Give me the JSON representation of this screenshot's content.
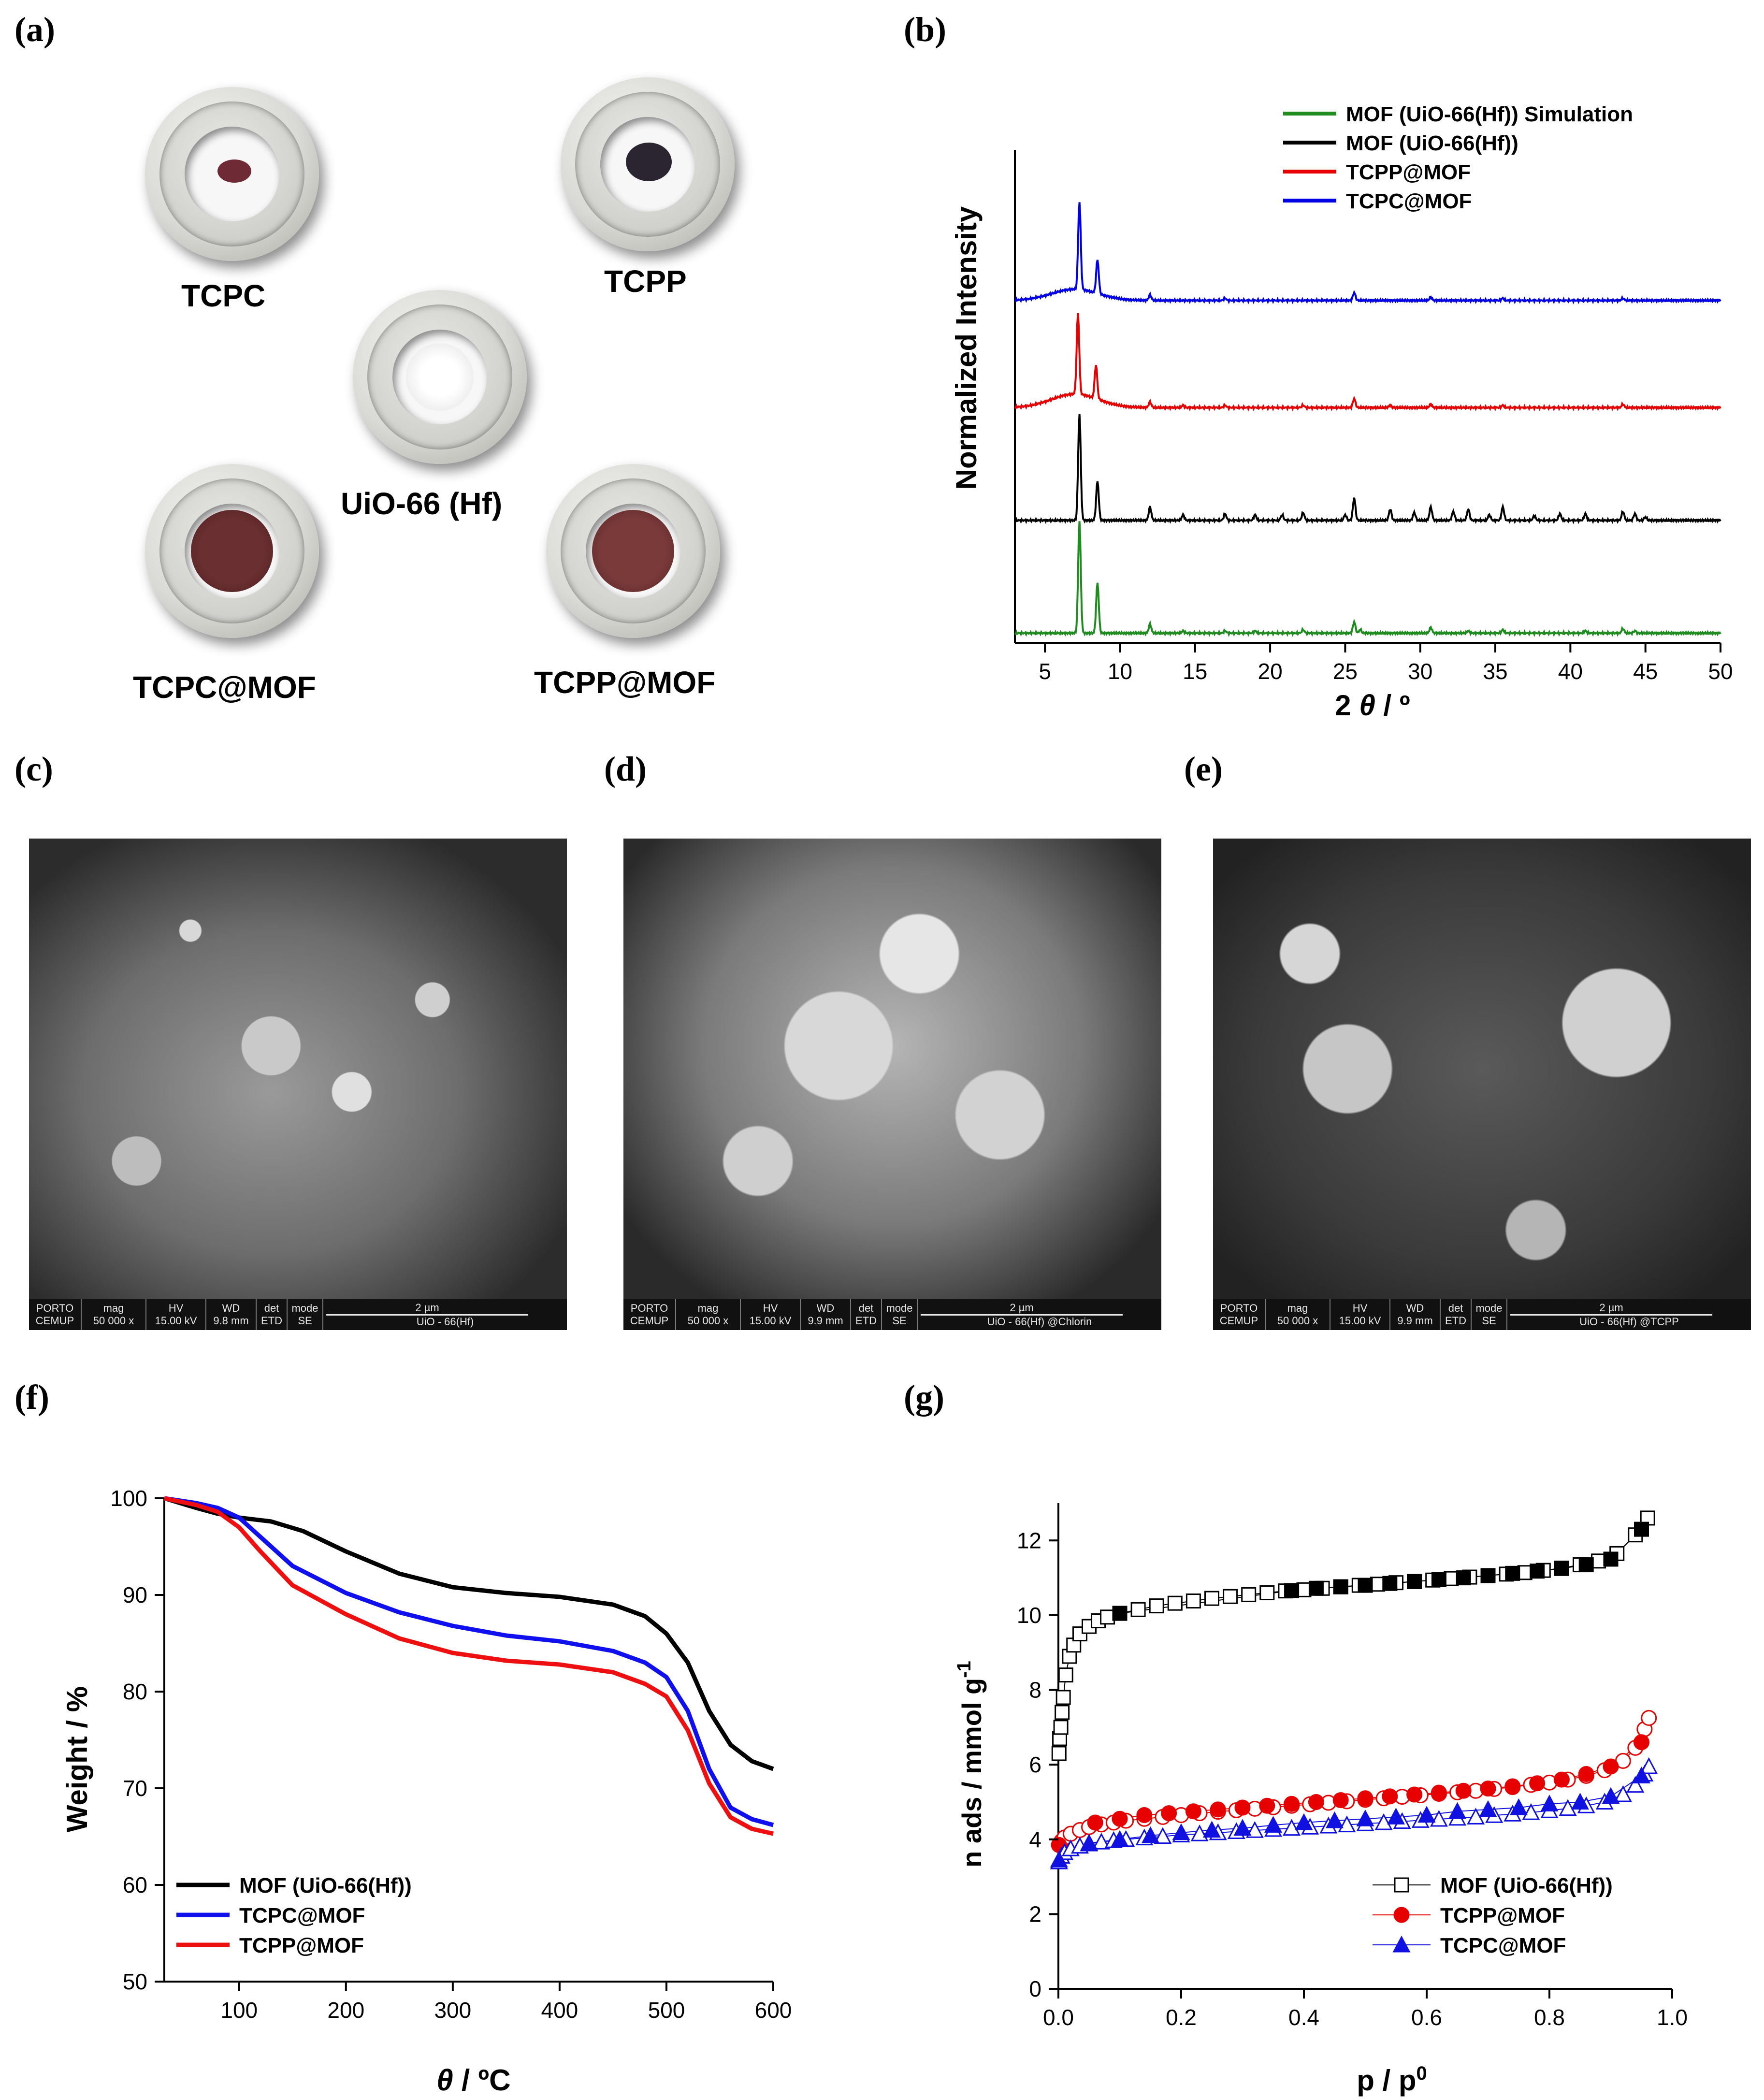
{
  "panels": {
    "a": {
      "label": "(a)",
      "samples": [
        {
          "name": "TCPC",
          "powder_color": "#6e2a35"
        },
        {
          "name": "TCPP",
          "powder_color": "#2a2530"
        },
        {
          "name": "UiO-66 (Hf)",
          "powder_color": "#ffffff"
        },
        {
          "name": "TCPC@MOF",
          "powder_color": "#6a2f30"
        },
        {
          "name": "TCPP@MOF",
          "powder_color": "#7a3a3a"
        }
      ]
    },
    "c": {
      "label": "(c)",
      "scalebar": "2 µm",
      "info": [
        "mag",
        "50 000 x",
        "HV",
        "15.00 kV",
        "WD",
        "9.8 mm",
        "det",
        "ETD",
        "mode",
        "SE"
      ],
      "sample": "UiO - 66(Hf)",
      "logo_top": "PORTO",
      "logo_bottom": "CEMUP"
    },
    "d": {
      "label": "(d)",
      "scalebar": "2 µm",
      "info": [
        "mag",
        "50 000 x",
        "HV",
        "15.00 kV",
        "WD",
        "9.9 mm",
        "det",
        "ETD",
        "mode",
        "SE"
      ],
      "sample": "UiO - 66(Hf) @Chlorin",
      "logo_top": "PORTO",
      "logo_bottom": "CEMUP"
    },
    "e": {
      "label": "(e)",
      "scalebar": "2 µm",
      "info": [
        "mag",
        "50 000 x",
        "HV",
        "15.00 kV",
        "WD",
        "9.9 mm",
        "det",
        "ETD",
        "mode",
        "SE"
      ],
      "sample": "UiO - 66(Hf) @TCPP",
      "logo_top": "PORTO",
      "logo_bottom": "CEMUP"
    }
  },
  "chart_data": [
    {
      "id": "b",
      "label": "(b)",
      "type": "line",
      "title": "",
      "xlabel_prefix": "2 ",
      "xlabel_symbol": "θ",
      "xlabel_suffix": " / º",
      "ylabel": "Normalized Intensity",
      "xlim": [
        3,
        50
      ],
      "xticks": [
        5,
        10,
        15,
        20,
        25,
        30,
        35,
        40,
        45,
        50
      ],
      "legend": "top-right",
      "series": [
        {
          "name": "MOF (UiO-66(Hf)) Simulation",
          "color": "#1e8c1e",
          "offset": 0,
          "baseline": 0,
          "peaks": [
            [
              7.3,
              100
            ],
            [
              8.5,
              45
            ],
            [
              12.0,
              8
            ],
            [
              14.2,
              2
            ],
            [
              17.0,
              2
            ],
            [
              19.0,
              2
            ],
            [
              22.2,
              3
            ],
            [
              25.6,
              10
            ],
            [
              26.0,
              3
            ],
            [
              30.7,
              5
            ],
            [
              33.2,
              2
            ],
            [
              35.5,
              3
            ],
            [
              41.0,
              2
            ],
            [
              43.5,
              4
            ],
            [
              44.3,
              2
            ]
          ]
        },
        {
          "name": "MOF (UiO-66(Hf))",
          "color": "#000000",
          "offset": 100,
          "baseline": 0,
          "peaks": [
            [
              7.3,
              95
            ],
            [
              8.5,
              35
            ],
            [
              12.0,
              12
            ],
            [
              14.2,
              5
            ],
            [
              17.0,
              6
            ],
            [
              19.0,
              5
            ],
            [
              20.8,
              5
            ],
            [
              22.2,
              7
            ],
            [
              25.0,
              5
            ],
            [
              25.6,
              20
            ],
            [
              28.0,
              10
            ],
            [
              29.6,
              7
            ],
            [
              30.7,
              12
            ],
            [
              32.2,
              8
            ],
            [
              33.2,
              10
            ],
            [
              34.6,
              5
            ],
            [
              35.5,
              12
            ],
            [
              37.6,
              4
            ],
            [
              39.3,
              6
            ],
            [
              41.0,
              6
            ],
            [
              43.5,
              8
            ],
            [
              44.3,
              6
            ],
            [
              45.0,
              3
            ]
          ]
        },
        {
          "name": "TCPP@MOF",
          "color": "#e60000",
          "offset": 200,
          "baseline": 12,
          "peaks": [
            [
              7.2,
              72
            ],
            [
              8.4,
              30
            ],
            [
              12.0,
              5
            ],
            [
              14.2,
              2
            ],
            [
              17.0,
              2
            ],
            [
              22.2,
              2
            ],
            [
              25.6,
              8
            ],
            [
              28.0,
              2
            ],
            [
              30.7,
              3
            ],
            [
              35.5,
              2
            ],
            [
              43.5,
              3
            ]
          ]
        },
        {
          "name": "TCPC@MOF",
          "color": "#0000e6",
          "offset": 295,
          "baseline": 10,
          "peaks": [
            [
              7.3,
              78
            ],
            [
              8.5,
              30
            ],
            [
              12.0,
              5
            ],
            [
              17.0,
              2
            ],
            [
              25.6,
              7
            ],
            [
              30.7,
              3
            ],
            [
              35.5,
              2
            ],
            [
              43.5,
              2
            ]
          ]
        }
      ]
    },
    {
      "id": "f",
      "label": "(f)",
      "type": "line",
      "title": "",
      "xlabel_symbol": "θ",
      "xlabel_suffix": " / ºC",
      "ylabel": "Weight / %",
      "xlim": [
        30,
        600
      ],
      "ylim": [
        50,
        100
      ],
      "xticks": [
        100,
        200,
        300,
        400,
        500,
        600
      ],
      "yticks": [
        50,
        60,
        70,
        80,
        90,
        100
      ],
      "legend": "bottom-left",
      "series": [
        {
          "name": "MOF (UiO-66(Hf))",
          "color": "#000000",
          "x": [
            30,
            60,
            80,
            100,
            130,
            160,
            200,
            250,
            300,
            350,
            400,
            450,
            480,
            500,
            520,
            540,
            560,
            580,
            600
          ],
          "y": [
            100,
            99.0,
            98.4,
            98.0,
            97.6,
            96.6,
            94.5,
            92.2,
            90.8,
            90.2,
            89.8,
            89.0,
            87.8,
            86.0,
            83.0,
            78.0,
            74.5,
            72.8,
            72.0
          ]
        },
        {
          "name": "TCPC@MOF",
          "color": "#1010ee",
          "x": [
            30,
            60,
            80,
            100,
            120,
            150,
            200,
            250,
            300,
            350,
            400,
            450,
            480,
            500,
            520,
            540,
            560,
            580,
            600
          ],
          "y": [
            100,
            99.5,
            99.0,
            98.0,
            96.0,
            93.0,
            90.2,
            88.2,
            86.8,
            85.8,
            85.2,
            84.2,
            83.0,
            81.5,
            78.0,
            72.0,
            68.0,
            66.8,
            66.2
          ]
        },
        {
          "name": "TCPP@MOF",
          "color": "#ee1010",
          "x": [
            30,
            60,
            80,
            100,
            120,
            150,
            200,
            250,
            300,
            350,
            400,
            450,
            480,
            500,
            520,
            540,
            560,
            580,
            600
          ],
          "y": [
            100,
            99.3,
            98.6,
            97.0,
            94.5,
            91.0,
            88.0,
            85.5,
            84.0,
            83.2,
            82.8,
            82.0,
            80.8,
            79.5,
            76.0,
            70.5,
            67.0,
            65.8,
            65.3
          ]
        }
      ]
    },
    {
      "id": "g",
      "label": "(g)",
      "type": "scatter",
      "title": "",
      "xlabel_main": "p / p",
      "xlabel_sup": "0",
      "ylabel_main": "n ads / mmol g",
      "ylabel_sup": "-1",
      "xlim": [
        0,
        1.0
      ],
      "ylim": [
        0,
        13
      ],
      "xticks": [
        0.0,
        0.2,
        0.4,
        0.6,
        0.8,
        1.0
      ],
      "yticks": [
        0,
        2,
        4,
        6,
        8,
        10,
        12
      ],
      "legend": "bottom-right",
      "series": [
        {
          "name": "MOF (UiO-66(Hf))",
          "color": "#000000",
          "marker": "square",
          "adsorption": {
            "x": [
              0.001,
              0.002,
              0.004,
              0.006,
              0.008,
              0.012,
              0.018,
              0.025,
              0.035,
              0.05,
              0.065,
              0.08,
              0.1,
              0.13,
              0.16,
              0.19,
              0.22,
              0.25,
              0.28,
              0.31,
              0.34,
              0.37,
              0.4,
              0.43,
              0.46,
              0.49,
              0.52,
              0.55,
              0.58,
              0.61,
              0.64,
              0.67,
              0.7,
              0.73,
              0.76,
              0.79,
              0.82,
              0.85,
              0.88,
              0.91,
              0.94,
              0.96
            ],
            "y": [
              6.3,
              6.7,
              7.0,
              7.4,
              7.8,
              8.4,
              8.9,
              9.2,
              9.5,
              9.7,
              9.85,
              9.95,
              10.05,
              10.15,
              10.25,
              10.32,
              10.38,
              10.45,
              10.5,
              10.55,
              10.6,
              10.65,
              10.68,
              10.72,
              10.76,
              10.8,
              10.83,
              10.87,
              10.9,
              10.94,
              10.98,
              11.02,
              11.06,
              11.1,
              11.14,
              11.2,
              11.26,
              11.35,
              11.45,
              11.65,
              12.15,
              12.6
            ]
          },
          "desorption": {
            "x": [
              0.95,
              0.9,
              0.86,
              0.82,
              0.78,
              0.74,
              0.7,
              0.66,
              0.62,
              0.58,
              0.54,
              0.5,
              0.46,
              0.42,
              0.38,
              0.1
            ],
            "y": [
              12.3,
              11.5,
              11.35,
              11.25,
              11.18,
              11.12,
              11.06,
              11.0,
              10.95,
              10.9,
              10.85,
              10.8,
              10.76,
              10.72,
              10.66,
              10.05
            ]
          }
        },
        {
          "name": "TCPP@MOF",
          "color": "#e60000",
          "marker": "circle",
          "adsorption": {
            "x": [
              0.001,
              0.005,
              0.01,
              0.02,
              0.035,
              0.05,
              0.07,
              0.09,
              0.11,
              0.14,
              0.17,
              0.2,
              0.23,
              0.26,
              0.29,
              0.32,
              0.35,
              0.38,
              0.41,
              0.44,
              0.47,
              0.5,
              0.53,
              0.56,
              0.59,
              0.62,
              0.65,
              0.68,
              0.71,
              0.74,
              0.77,
              0.8,
              0.83,
              0.86,
              0.89,
              0.92,
              0.94,
              0.955,
              0.962
            ],
            "y": [
              3.85,
              3.95,
              4.05,
              4.15,
              4.25,
              4.33,
              4.4,
              4.45,
              4.5,
              4.55,
              4.6,
              4.65,
              4.7,
              4.74,
              4.78,
              4.82,
              4.86,
              4.9,
              4.94,
              4.98,
              5.02,
              5.06,
              5.1,
              5.14,
              5.18,
              5.22,
              5.26,
              5.3,
              5.35,
              5.4,
              5.46,
              5.52,
              5.6,
              5.7,
              5.85,
              6.1,
              6.45,
              6.95,
              7.25
            ]
          },
          "desorption": {
            "x": [
              0.95,
              0.9,
              0.86,
              0.82,
              0.78,
              0.74,
              0.7,
              0.66,
              0.62,
              0.58,
              0.54,
              0.5,
              0.46,
              0.42,
              0.38,
              0.34,
              0.3,
              0.26,
              0.22,
              0.18,
              0.14,
              0.1,
              0.06,
              0.001
            ],
            "y": [
              6.6,
              5.95,
              5.75,
              5.6,
              5.5,
              5.42,
              5.36,
              5.3,
              5.25,
              5.2,
              5.15,
              5.1,
              5.05,
              5.0,
              4.95,
              4.9,
              4.85,
              4.8,
              4.75,
              4.7,
              4.65,
              4.55,
              4.45,
              3.85
            ]
          }
        },
        {
          "name": "TCPC@MOF",
          "color": "#1010e0",
          "marker": "triangle",
          "adsorption": {
            "x": [
              0.001,
              0.005,
              0.01,
              0.02,
              0.035,
              0.05,
              0.07,
              0.09,
              0.11,
              0.14,
              0.17,
              0.2,
              0.23,
              0.26,
              0.29,
              0.32,
              0.35,
              0.38,
              0.41,
              0.44,
              0.47,
              0.5,
              0.53,
              0.56,
              0.59,
              0.62,
              0.65,
              0.68,
              0.71,
              0.74,
              0.77,
              0.8,
              0.83,
              0.86,
              0.89,
              0.92,
              0.94,
              0.955,
              0.962
            ],
            "y": [
              3.4,
              3.55,
              3.65,
              3.75,
              3.82,
              3.88,
              3.93,
              3.97,
              4.0,
              4.04,
              4.08,
              4.12,
              4.15,
              4.18,
              4.21,
              4.24,
              4.27,
              4.3,
              4.33,
              4.36,
              4.39,
              4.42,
              4.45,
              4.48,
              4.51,
              4.54,
              4.57,
              4.6,
              4.64,
              4.68,
              4.72,
              4.77,
              4.83,
              4.9,
              5.0,
              5.2,
              5.45,
              5.75,
              5.95
            ]
          },
          "desorption": {
            "x": [
              0.95,
              0.9,
              0.85,
              0.8,
              0.75,
              0.7,
              0.65,
              0.6,
              0.55,
              0.5,
              0.45,
              0.4,
              0.35,
              0.3,
              0.25,
              0.2,
              0.15,
              0.1,
              0.05,
              0.001
            ],
            "y": [
              5.7,
              5.15,
              5.0,
              4.95,
              4.85,
              4.8,
              4.75,
              4.65,
              4.6,
              4.55,
              4.5,
              4.45,
              4.38,
              4.3,
              4.25,
              4.18,
              4.1,
              4.0,
              3.9,
              3.45
            ]
          }
        }
      ]
    }
  ]
}
